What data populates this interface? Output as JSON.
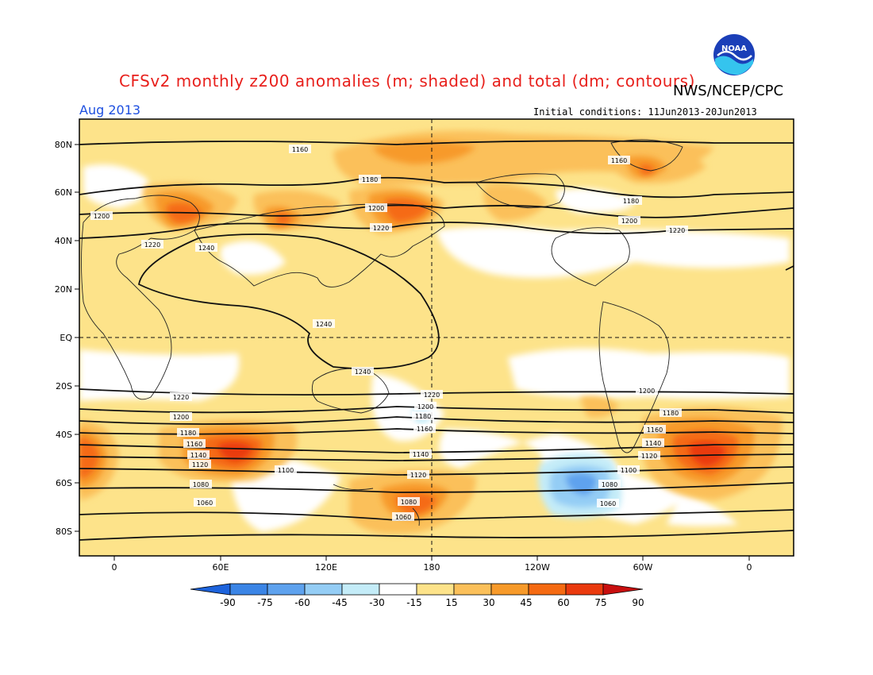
{
  "header": {
    "title": "CFSv2 monthly z200 anomalies (m; shaded) and total (dm; contours)",
    "org": "NWS/NCEP/CPC",
    "month": "Aug 2013",
    "initial_conditions": "Initial conditions: 11Jun2013-20Jun2013",
    "logo_text": "NOAA"
  },
  "map": {
    "lat_labels": [
      "80N",
      "60N",
      "40N",
      "20N",
      "EQ",
      "20S",
      "40S",
      "60S",
      "80S"
    ],
    "lon_labels": [
      "0",
      "60E",
      "120E",
      "180",
      "120W",
      "60W",
      "0"
    ],
    "contour_labels": [
      "1160",
      "1160",
      "1180",
      "1180",
      "1200",
      "1200",
      "1200",
      "1220",
      "1220",
      "1220",
      "1240",
      "1240",
      "1240",
      "1220",
      "1220",
      "1200",
      "1200",
      "1200",
      "1180",
      "1180",
      "1180",
      "1160",
      "1160",
      "1160",
      "1140",
      "1140",
      "1140",
      "1120",
      "1120",
      "1120",
      "1100",
      "1100",
      "1080",
      "1080",
      "1080",
      "1060",
      "1060",
      "1060"
    ]
  },
  "colorbar": {
    "labels": [
      "-90",
      "-75",
      "-60",
      "-45",
      "-30",
      "-15",
      "15",
      "30",
      "45",
      "60",
      "75",
      "90"
    ],
    "colors": [
      "#1d63dc",
      "#3b85e6",
      "#5ea2ee",
      "#94cdf5",
      "#c4ecf8",
      "#ffffff",
      "#fde38a",
      "#fbc05a",
      "#f79a2a",
      "#f56a12",
      "#ea3a0e",
      "#c80f0f"
    ]
  }
}
